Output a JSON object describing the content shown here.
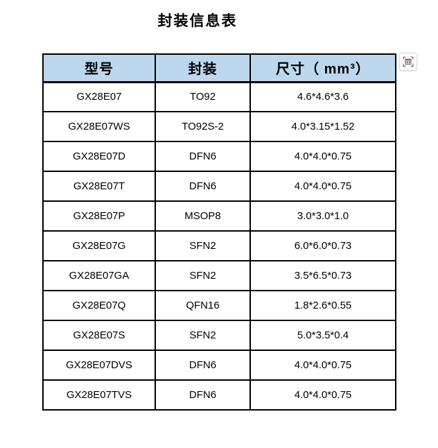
{
  "page": {
    "title": "封装信息表"
  },
  "table": {
    "columns": [
      {
        "key": "model",
        "label": "型号"
      },
      {
        "key": "package",
        "label": "封装"
      },
      {
        "key": "dimensions",
        "label": "尺寸（ mm³）"
      }
    ],
    "rows": [
      [
        "GX28E07",
        "TO92",
        "4.6*4.6*3.6"
      ],
      [
        "GX28E07WS",
        "TO92S-2",
        "4.0*3.15*1.52"
      ],
      [
        "GX28E07D",
        "DFN6",
        "4.0*4.0*0.75"
      ],
      [
        "GX28E07T",
        "DFN6",
        "4.0*4.0*0.75"
      ],
      [
        "GX28E07P",
        "MSOP8",
        "3.0*3.0*1.0"
      ],
      [
        "GX28E07G",
        "SFN2",
        "6.0*6.0*0.73"
      ],
      [
        "GX28E07GA",
        "SFN2",
        "3.5*6.5*0.73"
      ],
      [
        "GX28E07Q",
        "QFN16",
        "1.8*2.6*0.55"
      ],
      [
        "GX28E07S",
        "SFN2",
        "5.0*3.5*0.4"
      ],
      [
        "GX28E07DVS",
        "DFN6",
        "4.0*4.0*0.75"
      ],
      [
        "GX28E07TVS",
        "DFN6",
        "4.0*4.0*0.75"
      ]
    ],
    "colors": {
      "header_bg": "#BDD7EE",
      "border": "#000000",
      "text": "#000000"
    }
  },
  "overlay": {
    "icon": "table-capture-icon",
    "icon_colors": {
      "accent_red": "#E05A50",
      "glyph_gray": "#5F6368",
      "background": "#FFFFFF"
    }
  }
}
